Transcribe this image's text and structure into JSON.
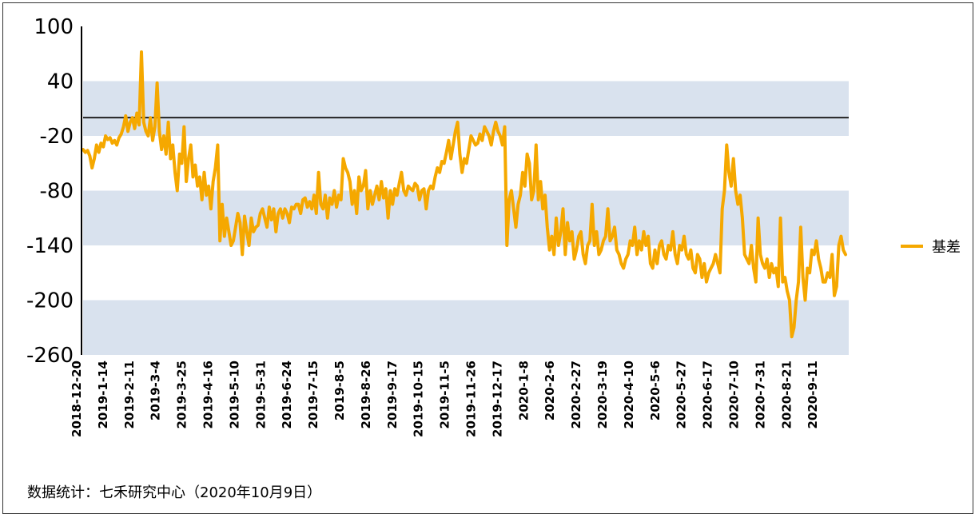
{
  "source_note": "数据统计：七禾研究中心（2020年10月9日）",
  "colors": {
    "series": "#F5A800",
    "band": "#D9E2EE",
    "refline": "#222222",
    "axis": "#000000"
  },
  "chart_data": {
    "type": "line",
    "title": "",
    "xlabel": "",
    "ylabel": "",
    "ylim": [
      -260,
      100
    ],
    "yticks": [
      100,
      40,
      -20,
      -80,
      -140,
      -200,
      -260
    ],
    "bands": [
      [
        -20,
        40
      ],
      [
        -140,
        -80
      ],
      [
        -260,
        -200
      ]
    ],
    "reference_line": 0,
    "legend_position": "right",
    "x_tick_labels": [
      "2018-12-20",
      "2019-1-14",
      "2019-2-11",
      "2019-3-4",
      "2019-3-25",
      "2019-4-16",
      "2019-5-10",
      "2019-5-31",
      "2019-6-24",
      "2019-7-15",
      "2019-8-5",
      "2019-8-26",
      "2019-9-17",
      "2019-10-15",
      "2019-11-5",
      "2019-11-26",
      "2019-12-17",
      "2020-1-8",
      "2020-2-6",
      "2020-2-27",
      "2020-3-19",
      "2020-4-10",
      "2020-5-6",
      "2020-5-27",
      "2020-6-17",
      "2020-7-10",
      "2020-7-31",
      "2020-8-21",
      "2020-9-11"
    ],
    "series": [
      {
        "name": "基差",
        "values": [
          -35,
          -38,
          -36,
          -42,
          -55,
          -45,
          -30,
          -38,
          -28,
          -32,
          -20,
          -24,
          -22,
          -28,
          -25,
          -30,
          -22,
          -18,
          -10,
          2,
          -15,
          -5,
          0,
          -12,
          5,
          -8,
          72,
          -5,
          -15,
          -20,
          0,
          -25,
          -10,
          38,
          -15,
          -35,
          -20,
          -40,
          -5,
          -45,
          -30,
          -60,
          -80,
          -40,
          -50,
          -10,
          -70,
          -45,
          -30,
          -65,
          -52,
          -75,
          -65,
          -90,
          -60,
          -85,
          -75,
          -100,
          -70,
          -55,
          -30,
          -135,
          -95,
          -130,
          -110,
          -125,
          -140,
          -135,
          -120,
          -105,
          -115,
          -150,
          -108,
          -125,
          -140,
          -110,
          -125,
          -120,
          -118,
          -105,
          -100,
          -110,
          -120,
          -98,
          -112,
          -100,
          -125,
          -105,
          -100,
          -110,
          -100,
          -105,
          -115,
          -98,
          -100,
          -95,
          -95,
          -105,
          -90,
          -88,
          -98,
          -92,
          -100,
          -85,
          -105,
          -60,
          -95,
          -100,
          -85,
          -110,
          -88,
          -95,
          -80,
          -98,
          -85,
          -90,
          -45,
          -55,
          -60,
          -70,
          -95,
          -80,
          -105,
          -65,
          -80,
          -75,
          -58,
          -100,
          -80,
          -95,
          -85,
          -75,
          -90,
          -70,
          -88,
          -78,
          -110,
          -80,
          -95,
          -78,
          -85,
          -72,
          -60,
          -80,
          -85,
          -75,
          -78,
          -80,
          -72,
          -75,
          -90,
          -80,
          -78,
          -100,
          -80,
          -75,
          -78,
          -65,
          -55,
          -60,
          -48,
          -50,
          -38,
          -25,
          -45,
          -30,
          -15,
          -5,
          -40,
          -60,
          -45,
          -50,
          -35,
          -20,
          -25,
          -30,
          -28,
          -18,
          -25,
          -10,
          -15,
          -20,
          -30,
          -15,
          -5,
          -15,
          -20,
          -30,
          -10,
          -140,
          -90,
          -80,
          -100,
          -120,
          -95,
          -85,
          -60,
          -75,
          -40,
          -50,
          -90,
          -80,
          -30,
          -90,
          -70,
          -100,
          -85,
          -120,
          -145,
          -130,
          -150,
          -110,
          -140,
          -125,
          -100,
          -150,
          -115,
          -135,
          -125,
          -155,
          -145,
          -130,
          -125,
          -150,
          -160,
          -140,
          -135,
          -95,
          -140,
          -125,
          -150,
          -145,
          -135,
          -130,
          -100,
          -135,
          -130,
          -120,
          -145,
          -150,
          -160,
          -165,
          -155,
          -150,
          -135,
          -140,
          -120,
          -150,
          -135,
          -145,
          -125,
          -140,
          -130,
          -160,
          -165,
          -145,
          -160,
          -140,
          -135,
          -150,
          -155,
          -140,
          -145,
          -125,
          -150,
          -160,
          -140,
          -145,
          -130,
          -150,
          -155,
          -145,
          -165,
          -170,
          -150,
          -155,
          -175,
          -160,
          -180,
          -170,
          -165,
          -160,
          -150,
          -160,
          -170,
          -100,
          -80,
          -30,
          -60,
          -75,
          -45,
          -80,
          -95,
          -85,
          -110,
          -150,
          -155,
          -160,
          -140,
          -165,
          -180,
          -110,
          -150,
          -160,
          -165,
          -155,
          -175,
          -160,
          -170,
          -165,
          -185,
          -110,
          -180,
          -175,
          -190,
          -200,
          -240,
          -230,
          -200,
          -180,
          -120,
          -175,
          -200,
          -165,
          -170,
          -145,
          -150,
          -135,
          -155,
          -165,
          -180,
          -180,
          -170,
          -175,
          -150,
          -195,
          -185,
          -140,
          -130,
          -145,
          -150
        ]
      }
    ]
  }
}
